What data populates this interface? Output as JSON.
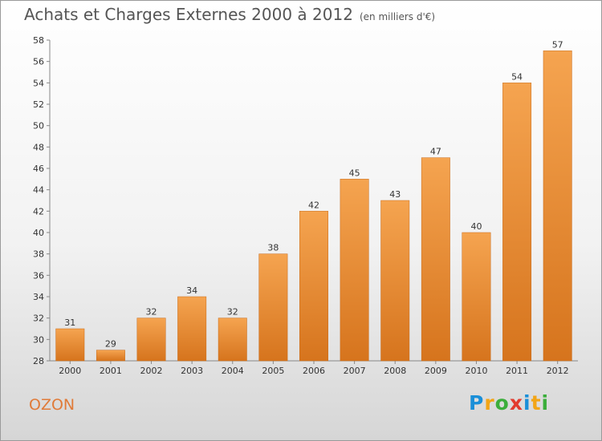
{
  "header": {
    "title": "Achats et Charges Externes 2000 à 2012",
    "subtitle": "(en milliers d'€)"
  },
  "footer": {
    "place": "OZON",
    "logo_letters": [
      "P",
      "r",
      "o",
      "x",
      "i",
      "t",
      "i"
    ],
    "logo_colors": [
      "#1a8fd8",
      "#f2a516",
      "#3bae3b",
      "#e23b2e",
      "#1a8fd8",
      "#f2a516",
      "#3bae3b"
    ]
  },
  "chart_data": {
    "type": "bar",
    "title": "Achats et Charges Externes 2000 à 2012",
    "subtitle": "(en milliers d'€)",
    "categories": [
      "2000",
      "2001",
      "2002",
      "2003",
      "2004",
      "2005",
      "2006",
      "2007",
      "2008",
      "2009",
      "2010",
      "2011",
      "2012"
    ],
    "values": [
      31,
      29,
      32,
      34,
      32,
      38,
      42,
      45,
      43,
      47,
      40,
      54,
      57
    ],
    "ylim": [
      28,
      58
    ],
    "yticks": [
      28,
      30,
      32,
      34,
      36,
      38,
      40,
      42,
      44,
      46,
      48,
      50,
      52,
      54,
      56,
      58
    ],
    "grid": false,
    "bar_color_top": "#f5a450",
    "bar_color_bottom": "#d6741d"
  }
}
